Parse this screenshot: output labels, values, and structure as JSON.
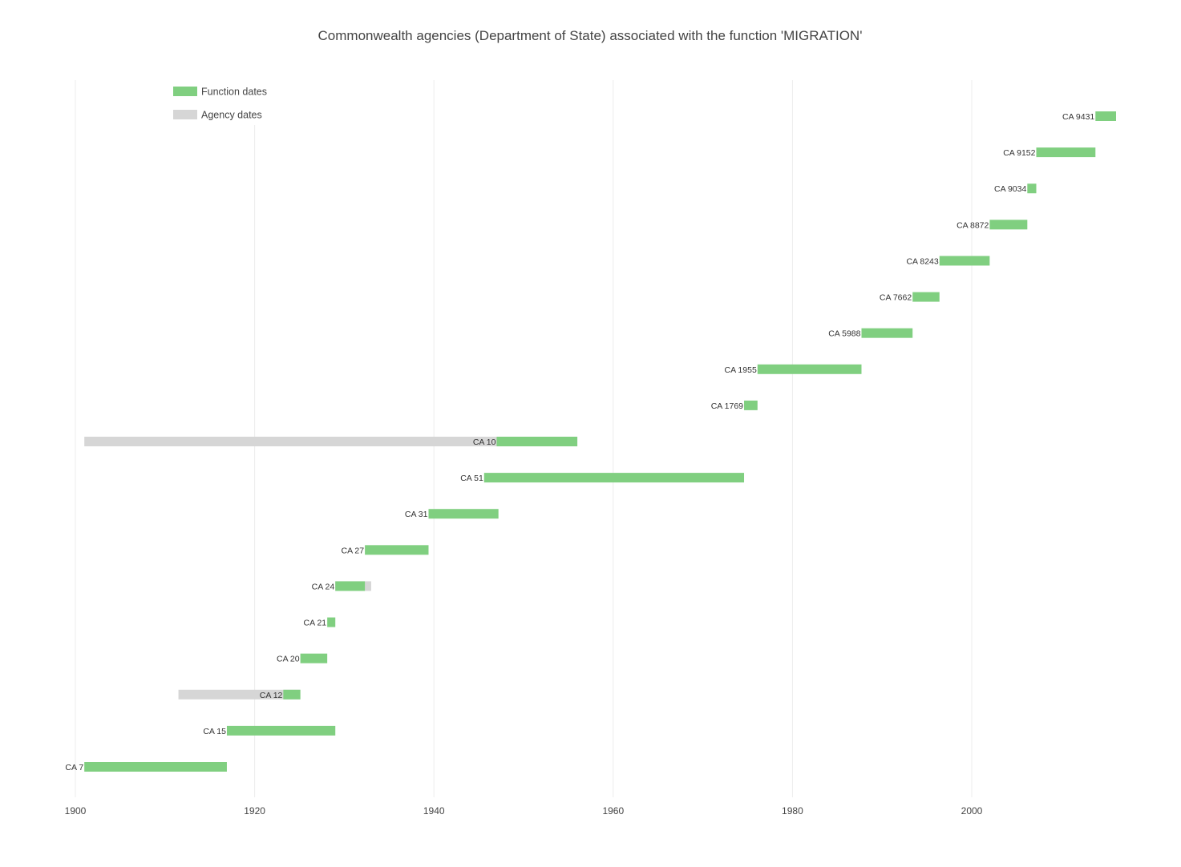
{
  "chart_data": {
    "type": "timeline",
    "title": "Commonwealth agencies (Department of State) associated with the function 'MIGRATION'",
    "xlabel": "",
    "ylabel": "",
    "xlim": [
      1900,
      2017
    ],
    "x_ticks": [
      "1900",
      "1920",
      "1940",
      "1960",
      "1980",
      "2000"
    ],
    "grid": "vertical",
    "legend_position": "top-left",
    "legend": [
      {
        "name": "Function dates",
        "color": "#80cf80"
      },
      {
        "name": "Agency dates",
        "color": "#d6d6d6"
      }
    ],
    "agencies": [
      {
        "label": "CA 7",
        "function_start": 1901.0,
        "function_end": 1916.9,
        "agency_start": null,
        "agency_end": null
      },
      {
        "label": "CA 15",
        "function_start": 1916.9,
        "function_end": 1929.0,
        "agency_start": null,
        "agency_end": null
      },
      {
        "label": "CA 12",
        "function_start": 1923.2,
        "function_end": 1925.1,
        "agency_start": 1911.5,
        "agency_end": 1925.1
      },
      {
        "label": "CA 20",
        "function_start": 1925.1,
        "function_end": 1928.1,
        "agency_start": null,
        "agency_end": null
      },
      {
        "label": "CA 21",
        "function_start": 1928.1,
        "function_end": 1929.0,
        "agency_start": null,
        "agency_end": null
      },
      {
        "label": "CA 24",
        "function_start": 1929.0,
        "function_end": 1932.3,
        "agency_start": 1929.0,
        "agency_end": 1933.0
      },
      {
        "label": "CA 27",
        "function_start": 1932.3,
        "function_end": 1939.4,
        "agency_start": null,
        "agency_end": null
      },
      {
        "label": "CA 31",
        "function_start": 1939.4,
        "function_end": 1947.2,
        "agency_start": null,
        "agency_end": null
      },
      {
        "label": "CA 51",
        "function_start": 1945.6,
        "function_end": 1974.6,
        "agency_start": null,
        "agency_end": null
      },
      {
        "label": "CA 10",
        "function_start": 1947.0,
        "function_end": 1956.0,
        "agency_start": 1901.0,
        "agency_end": 1956.0
      },
      {
        "label": "CA 1769",
        "function_start": 1974.6,
        "function_end": 1976.1,
        "agency_start": null,
        "agency_end": null
      },
      {
        "label": "CA 1955",
        "function_start": 1976.1,
        "function_end": 1987.7,
        "agency_start": null,
        "agency_end": null
      },
      {
        "label": "CA 5988",
        "function_start": 1987.7,
        "function_end": 1993.4,
        "agency_start": null,
        "agency_end": null
      },
      {
        "label": "CA 7662",
        "function_start": 1993.4,
        "function_end": 1996.4,
        "agency_start": null,
        "agency_end": null
      },
      {
        "label": "CA 8243",
        "function_start": 1996.4,
        "function_end": 2002.0,
        "agency_start": null,
        "agency_end": null
      },
      {
        "label": "CA 8872",
        "function_start": 2002.0,
        "function_end": 2006.2,
        "agency_start": null,
        "agency_end": null
      },
      {
        "label": "CA 9034",
        "function_start": 2006.2,
        "function_end": 2007.2,
        "agency_start": null,
        "agency_end": null
      },
      {
        "label": "CA 9152",
        "function_start": 2007.2,
        "function_end": 2013.8,
        "agency_start": null,
        "agency_end": null
      },
      {
        "label": "CA 9431",
        "function_start": 2013.8,
        "function_end": 2016.1,
        "agency_start": null,
        "agency_end": null
      }
    ]
  }
}
